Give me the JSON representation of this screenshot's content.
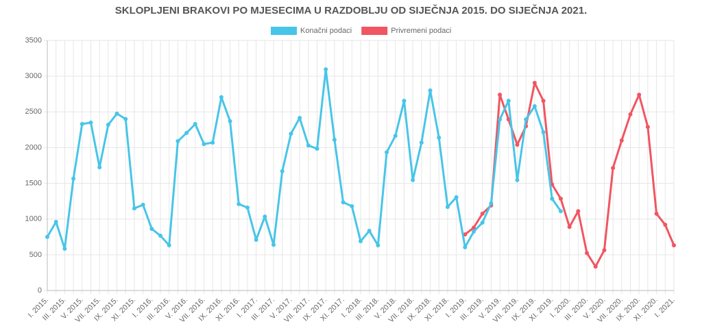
{
  "chart_data": {
    "type": "line",
    "title": "SKLOPLJENI BRAKOVI PO MJESECIMA U RAZDOBLJU OD SIJEČNJA 2015. DO SIJEČNJA 2021.",
    "categories": [
      "I. 2015.",
      null,
      "III. 2015.",
      null,
      "V. 2015.",
      null,
      "VII. 2015.",
      null,
      "IX. 2015.",
      null,
      "XI. 2015.",
      null,
      "I. 2016.",
      null,
      "III. 2016.",
      null,
      "V. 2016.",
      null,
      "VII. 2016.",
      null,
      "IX. 2016.",
      null,
      "XI. 2016.",
      null,
      "I. 2017.",
      null,
      "III. 2017.",
      null,
      "V. 2017.",
      null,
      "VII. 2017.",
      null,
      "IX. 2017.",
      null,
      "XI. 2017.",
      null,
      "I. 2018.",
      null,
      "III. 2018.",
      null,
      "V. 2018.",
      null,
      "VII. 2018.",
      null,
      "IX. 2018.",
      null,
      "XI. 2018.",
      null,
      "I. 2019.",
      null,
      "III. 2019.",
      null,
      "V. 2019.",
      null,
      "VII. 2019.",
      null,
      "IX. 2019.",
      null,
      "XI. 2019.",
      null,
      "I. 2020.",
      null,
      "III. 2020.",
      null,
      "V. 2020.",
      null,
      "VII. 2020.",
      null,
      "IX. 2020.",
      null,
      "XI. 2020.",
      null,
      "I. 2021."
    ],
    "series": [
      {
        "name": "Konačni podaci",
        "color": "#47c5e8",
        "values": [
          750,
          960,
          585,
          1565,
          2330,
          2350,
          1725,
          2320,
          2475,
          2400,
          1150,
          1200,
          863,
          767,
          633,
          2090,
          2205,
          2330,
          2050,
          2070,
          2705,
          2370,
          1210,
          1160,
          710,
          1035,
          640,
          1670,
          2195,
          2415,
          2030,
          1985,
          3095,
          2110,
          1235,
          1180,
          690,
          835,
          633,
          1935,
          2165,
          2655,
          1545,
          2070,
          2800,
          2140,
          1170,
          1305,
          605,
          825,
          950,
          1220,
          2395,
          2655,
          1545,
          2395,
          2580,
          2215,
          1285,
          1110,
          null,
          null,
          null,
          null,
          null,
          null,
          null,
          null,
          null,
          null,
          null,
          null,
          null
        ]
      },
      {
        "name": "Privremeni podaci",
        "color": "#f05561",
        "values": [
          null,
          null,
          null,
          null,
          null,
          null,
          null,
          null,
          null,
          null,
          null,
          null,
          null,
          null,
          null,
          null,
          null,
          null,
          null,
          null,
          null,
          null,
          null,
          null,
          null,
          null,
          null,
          null,
          null,
          null,
          null,
          null,
          null,
          null,
          null,
          null,
          null,
          null,
          null,
          null,
          null,
          null,
          null,
          null,
          null,
          null,
          null,
          null,
          785,
          880,
          1075,
          1190,
          2740,
          2395,
          2040,
          2300,
          2905,
          2655,
          1485,
          1285,
          890,
          1110,
          525,
          335,
          565,
          1715,
          2100,
          2465,
          2740,
          2290,
          1075,
          920,
          633
        ]
      }
    ],
    "ylim": [
      0,
      3500
    ],
    "yticks": [
      0,
      500,
      1000,
      1500,
      2000,
      2500,
      3000,
      3500
    ],
    "grid": true,
    "legend": "top"
  }
}
